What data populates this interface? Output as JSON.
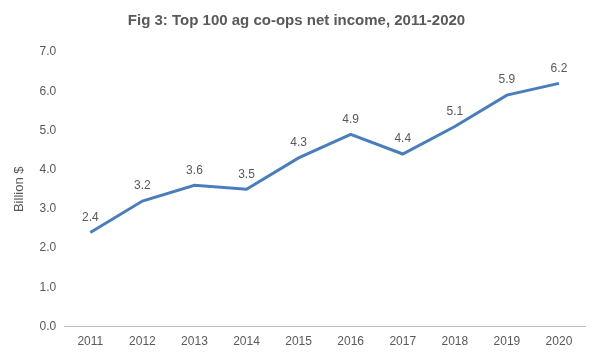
{
  "chart_data": {
    "type": "line",
    "title": "Fig 3: Top 100 ag co-ops net income, 2011-2020",
    "y_label": "Billion $",
    "categories": [
      "2011",
      "2012",
      "2013",
      "2014",
      "2015",
      "2016",
      "2017",
      "2018",
      "2019",
      "2020"
    ],
    "values": [
      2.4,
      3.2,
      3.6,
      3.5,
      4.3,
      4.9,
      4.4,
      5.1,
      5.9,
      6.2
    ],
    "color": "#4a7ebb",
    "marker": "none",
    "line_style": "solid",
    "data_labels": true,
    "grid": false,
    "ylim": [
      0,
      7
    ],
    "yticks": [
      {
        "value": 0,
        "label": "0.0"
      },
      {
        "value": 1,
        "label": "1.0"
      },
      {
        "value": 2,
        "label": "2.0"
      },
      {
        "value": 3,
        "label": "3.0"
      },
      {
        "value": 4,
        "label": "4.0"
      },
      {
        "value": 5,
        "label": "5.0"
      },
      {
        "value": 6,
        "label": "6.0"
      },
      {
        "value": 7,
        "label": "7.0"
      }
    ]
  }
}
